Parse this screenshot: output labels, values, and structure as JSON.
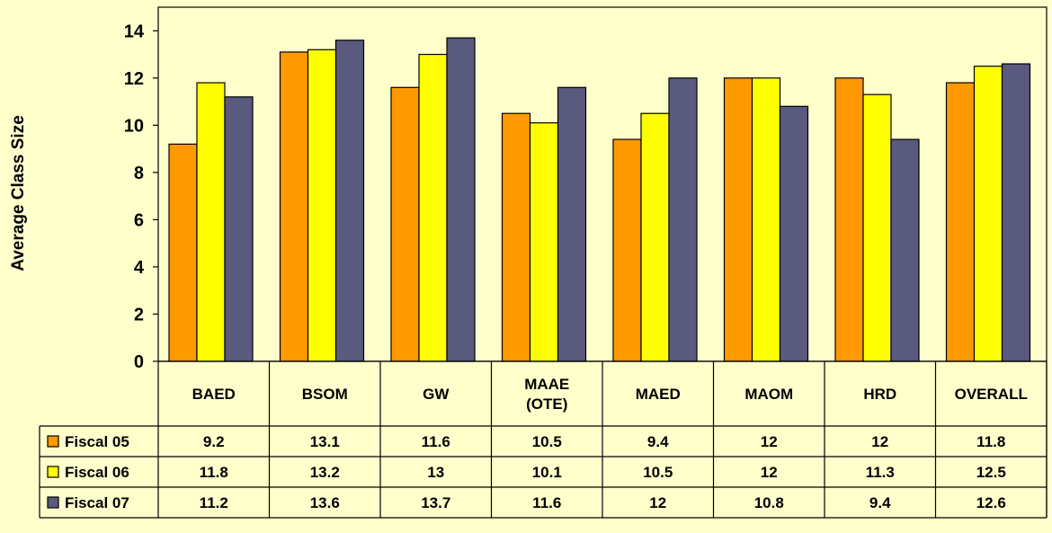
{
  "chart_data": {
    "type": "bar",
    "title": "",
    "xlabel": "",
    "ylabel": "Average Class Size",
    "ylim": [
      0,
      15
    ],
    "yticks": [
      0,
      2,
      4,
      6,
      8,
      10,
      12,
      14
    ],
    "grid": false,
    "legend": "data-table-left",
    "categories": [
      [
        "BAED"
      ],
      [
        "BSOM"
      ],
      [
        "GW"
      ],
      [
        "MAAE",
        "(OTE)"
      ],
      [
        "MAED"
      ],
      [
        "MAOM"
      ],
      [
        "HRD"
      ],
      [
        "OVERALL"
      ]
    ],
    "series": [
      {
        "name": "Fiscal 05",
        "color": "#FF9900",
        "values": [
          9.2,
          13.1,
          11.6,
          10.5,
          9.4,
          12,
          12,
          11.8
        ]
      },
      {
        "name": "Fiscal 06",
        "color": "#FFFF00",
        "values": [
          11.8,
          13.2,
          13,
          10.1,
          10.5,
          12,
          11.3,
          12.5
        ]
      },
      {
        "name": "Fiscal 07",
        "color": "#5A5A7E",
        "values": [
          11.2,
          13.6,
          13.7,
          11.6,
          12,
          10.8,
          9.4,
          12.6
        ]
      }
    ]
  }
}
